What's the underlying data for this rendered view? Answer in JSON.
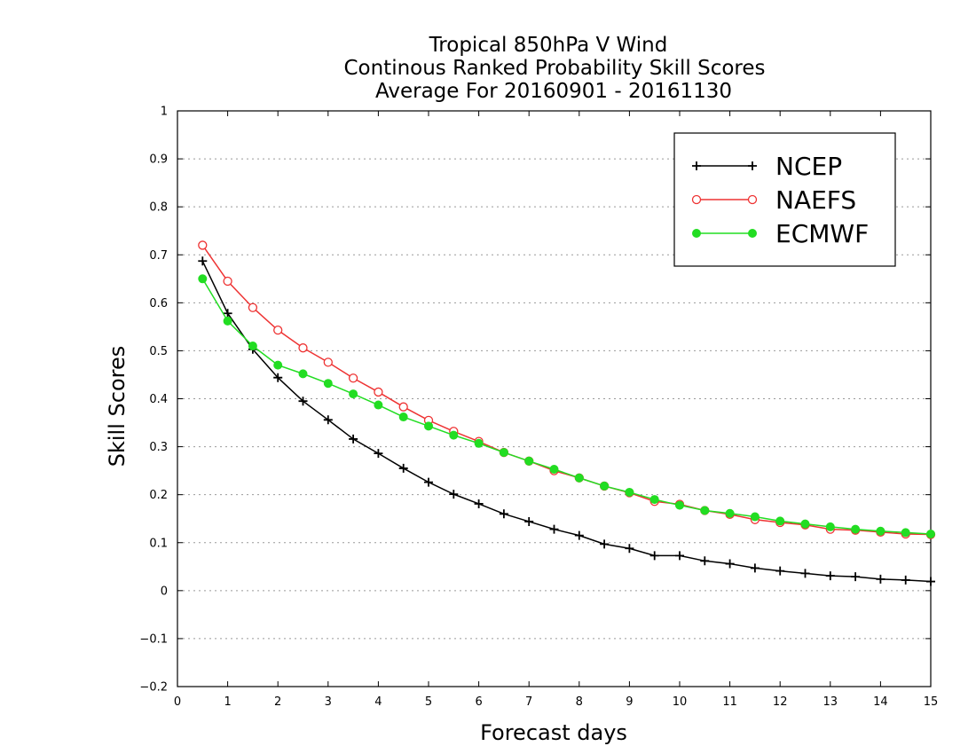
{
  "chart_data": {
    "type": "line",
    "title_lines": [
      "Tropical 850hPa V Wind",
      "Continous Ranked Probability Skill Scores",
      "Average For 20160901 - 20161130"
    ],
    "xlabel": "Forecast days",
    "ylabel": "Skill Scores",
    "xlim": [
      0,
      15
    ],
    "ylim": [
      -0.2,
      1
    ],
    "xticks": [
      0,
      1,
      2,
      3,
      4,
      5,
      6,
      7,
      8,
      9,
      10,
      11,
      12,
      13,
      14,
      15
    ],
    "yticks": [
      -0.2,
      -0.1,
      0,
      0.1,
      0.2,
      0.3,
      0.4,
      0.5,
      0.6,
      0.7,
      0.8,
      0.9,
      1
    ],
    "ytick_labels": [
      "−0.2",
      "−0.1",
      "0",
      "0.1",
      "0.2",
      "0.3",
      "0.4",
      "0.5",
      "0.6",
      "0.7",
      "0.8",
      "0.9",
      "1"
    ],
    "grid": "horizontal dotted",
    "legend_position": "top-right",
    "x": [
      0.5,
      1,
      1.5,
      2,
      2.5,
      3,
      3.5,
      4,
      4.5,
      5,
      5.5,
      6,
      6.5,
      7,
      7.5,
      8,
      8.5,
      9,
      9.5,
      10,
      10.5,
      11,
      11.5,
      12,
      12.5,
      13,
      13.5,
      14,
      14.5,
      15
    ],
    "series": [
      {
        "name": "NCEP",
        "color": "#000000",
        "marker": "plus",
        "values": [
          0.687,
          0.578,
          0.503,
          0.444,
          0.395,
          0.356,
          0.316,
          0.286,
          0.255,
          0.226,
          0.201,
          0.181,
          0.16,
          0.144,
          0.128,
          0.115,
          0.097,
          0.088,
          0.073,
          0.073,
          0.062,
          0.056,
          0.047,
          0.041,
          0.036,
          0.031,
          0.029,
          0.024,
          0.022,
          0.019
        ]
      },
      {
        "name": "NAEFS",
        "color": "#ee3333",
        "marker": "open-circle",
        "values": [
          0.72,
          0.645,
          0.59,
          0.543,
          0.506,
          0.476,
          0.443,
          0.414,
          0.383,
          0.355,
          0.332,
          0.311,
          0.288,
          0.27,
          0.25,
          0.235,
          0.218,
          0.204,
          0.186,
          0.18,
          0.167,
          0.159,
          0.148,
          0.142,
          0.137,
          0.128,
          0.126,
          0.122,
          0.118,
          0.117
        ]
      },
      {
        "name": "ECMWF",
        "color": "#22dd22",
        "marker": "filled-circle",
        "values": [
          0.65,
          0.562,
          0.51,
          0.47,
          0.452,
          0.432,
          0.41,
          0.387,
          0.362,
          0.343,
          0.324,
          0.307,
          0.288,
          0.27,
          0.253,
          0.235,
          0.218,
          0.205,
          0.19,
          0.178,
          0.167,
          0.161,
          0.154,
          0.145,
          0.139,
          0.133,
          0.128,
          0.124,
          0.121,
          0.118
        ]
      }
    ]
  }
}
